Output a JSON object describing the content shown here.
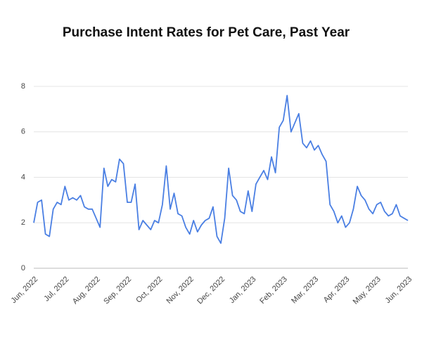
{
  "chart_data": {
    "type": "line",
    "title": "Purchase Intent  Rates for Pet Care, Past Year",
    "categories": [
      "Jun, 2022",
      null,
      null,
      null,
      null,
      null,
      null,
      null,
      "Jul, 2022",
      null,
      null,
      null,
      null,
      null,
      null,
      null,
      "Aug, 2022",
      null,
      null,
      null,
      null,
      null,
      null,
      null,
      "Sep, 2022",
      null,
      null,
      null,
      null,
      null,
      null,
      null,
      "Oct, 2022",
      null,
      null,
      null,
      null,
      null,
      null,
      null,
      "Nov, 2022",
      null,
      null,
      null,
      null,
      null,
      null,
      null,
      "Dec, 2022",
      null,
      null,
      null,
      null,
      null,
      null,
      null,
      "Jan, 2023",
      null,
      null,
      null,
      null,
      null,
      null,
      null,
      "Feb, 2023",
      null,
      null,
      null,
      null,
      null,
      null,
      null,
      "Mar, 2023",
      null,
      null,
      null,
      null,
      null,
      null,
      null,
      "Apr, 2023",
      null,
      null,
      null,
      null,
      null,
      null,
      null,
      "May, 2023",
      null,
      null,
      null,
      null,
      null,
      null,
      null,
      "Jun, 2023"
    ],
    "series": [
      {
        "name": "Purchase intent",
        "color": "#4a7fe3",
        "values": [
          2.0,
          2.9,
          3.0,
          1.5,
          1.4,
          2.6,
          2.9,
          2.8,
          3.6,
          3.0,
          3.1,
          3.0,
          3.2,
          2.7,
          2.6,
          2.6,
          2.2,
          1.8,
          4.4,
          3.6,
          3.9,
          3.8,
          4.8,
          4.6,
          2.9,
          2.9,
          3.7,
          1.7,
          2.1,
          1.9,
          1.7,
          2.1,
          2.0,
          2.8,
          4.5,
          2.6,
          3.3,
          2.4,
          2.3,
          1.8,
          1.5,
          2.1,
          1.6,
          1.9,
          2.1,
          2.2,
          2.7,
          1.4,
          1.1,
          2.2,
          4.4,
          3.2,
          3.0,
          2.5,
          2.4,
          3.4,
          2.5,
          3.7,
          4.0,
          4.3,
          3.9,
          4.9,
          4.2,
          6.2,
          6.5,
          7.6,
          6.0,
          6.4,
          6.8,
          5.5,
          5.3,
          5.6,
          5.2,
          5.4,
          5.0,
          4.7,
          2.8,
          2.5,
          2.0,
          2.3,
          1.8,
          2.0,
          2.6,
          3.6,
          3.2,
          3.0,
          2.6,
          2.4,
          2.8,
          2.9,
          2.5,
          2.3,
          2.4,
          2.8,
          2.3,
          2.2,
          2.1
        ]
      }
    ],
    "ylim": [
      0,
      8
    ],
    "yticks": [
      0,
      2,
      4,
      6,
      8
    ],
    "grid": true
  }
}
